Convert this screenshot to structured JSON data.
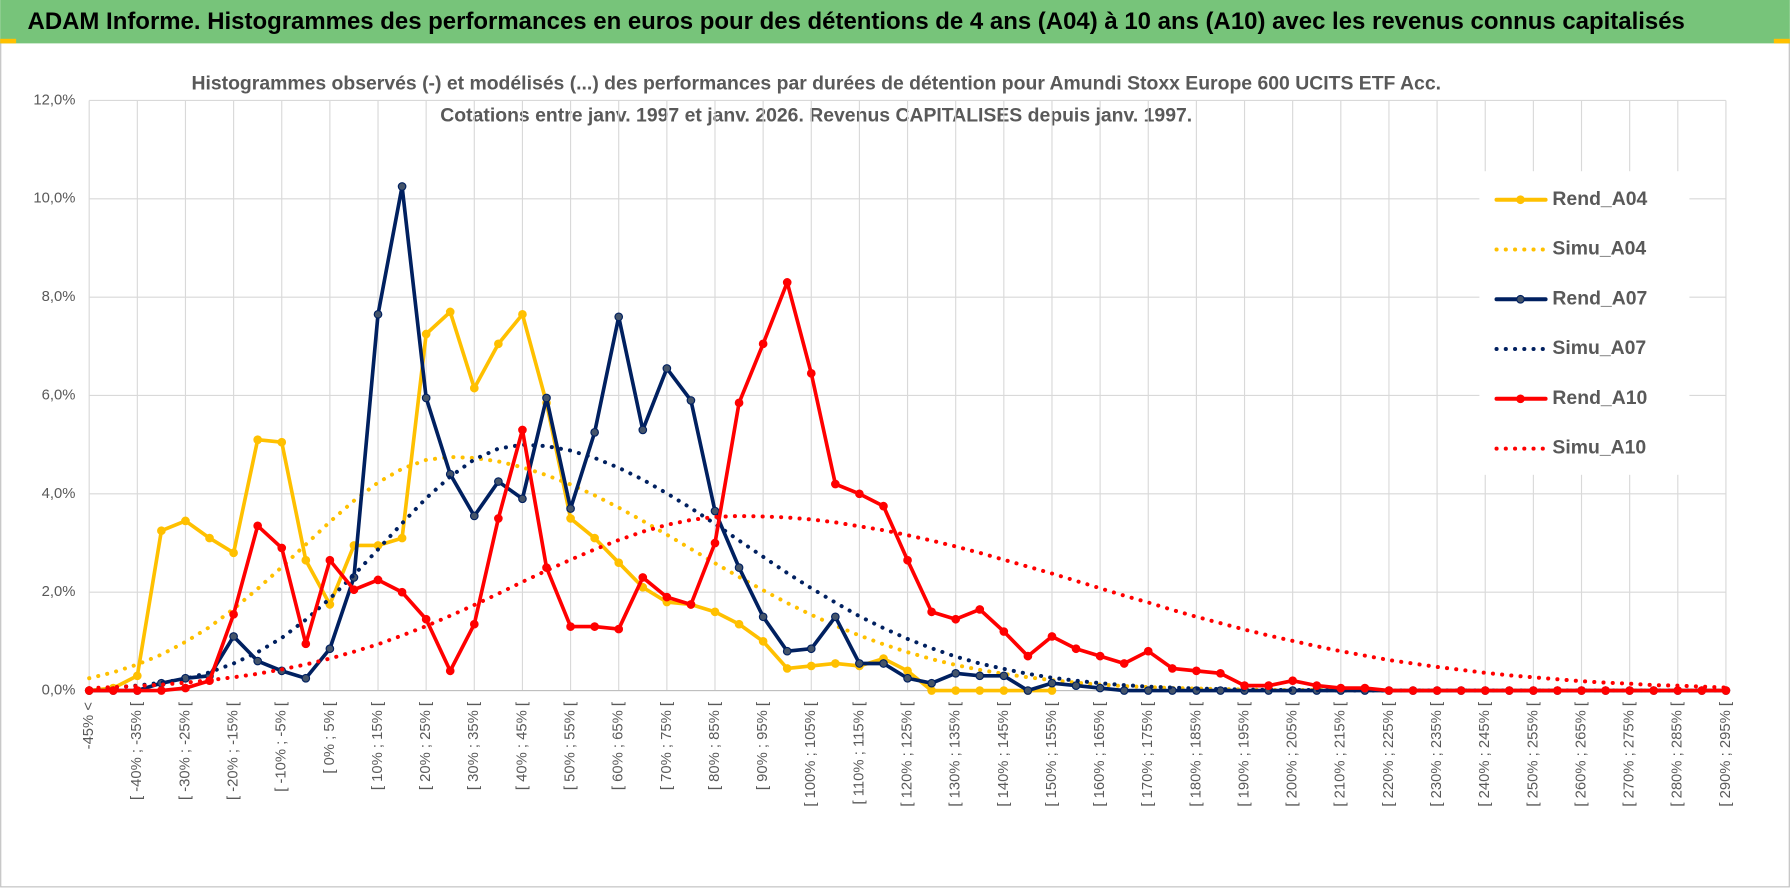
{
  "header": {
    "title": "ADAM Informe. Histogrammes des performances en euros pour des détentions de 4 ans (A04) à 10 ans (A10) avec les revenus connus capitalisés"
  },
  "chart_data": {
    "type": "line",
    "title": [
      "Histogrammes observés (-) et modélisés (...) des performances par durées de détention pour Amundi Stoxx Europe 600 UCITS ETF Acc.",
      "Cotations entre janv. 1997 et janv. 2026. Revenus CAPITALISES depuis janv. 1997."
    ],
    "categories": [
      "-45% <",
      null,
      "[ -40% ; -35% [",
      null,
      "[ -30% ; -25% [",
      null,
      "[ -20% ; -15% [",
      null,
      "[ -10% ; -5% [",
      null,
      "[ 0% ; 5% [",
      null,
      "[ 10% ; 15% [",
      null,
      "[ 20% ; 25% [",
      null,
      "[ 30% ; 35% [",
      null,
      "[ 40% ; 45% [",
      null,
      "[ 50% ; 55% [",
      null,
      "[ 60% ; 65% [",
      null,
      "[ 70% ; 75% [",
      null,
      "[ 80% ; 85% [",
      null,
      "[ 90% ; 95% [",
      null,
      "[ 100% ; 105% [",
      null,
      "[ 110% ; 115% [",
      null,
      "[ 120% ; 125% [",
      null,
      "[ 130% ; 135% [",
      null,
      "[ 140% ; 145% [",
      null,
      "[ 150% ; 155% [",
      null,
      "[ 160% ; 165% [",
      null,
      "[ 170% ; 175% [",
      null,
      "[ 180% ; 185% [",
      null,
      "[ 190% ; 195% [",
      null,
      "[ 200% ; 205% [",
      null,
      "[ 210% ; 215% [",
      null,
      "[ 220% ; 225% [",
      null,
      "[ 230% ; 235% [",
      null,
      "[ 240% ; 245% [",
      null,
      "[ 250% ; 255% [",
      null,
      "[ 260% ; 265% [",
      null,
      "[ 270% ; 275% [",
      null,
      "[ 280% ; 285% [",
      null,
      "[ 290% ; 295% ["
    ],
    "ylim": [
      0,
      12
    ],
    "yticks": [
      {
        "value": 0,
        "label": "0,0%"
      },
      {
        "value": 2,
        "label": "2,0%"
      },
      {
        "value": 4,
        "label": "4,0%"
      },
      {
        "value": 6,
        "label": "6,0%"
      },
      {
        "value": 8,
        "label": "8,0%"
      },
      {
        "value": 10,
        "label": "10,0%"
      },
      {
        "value": 12,
        "label": "12,0%"
      }
    ],
    "grid": true,
    "legend": "right",
    "series": [
      {
        "name": "Rend_A04",
        "color": "#ffc000",
        "line_style": "solid",
        "marker": true,
        "values": [
          0,
          0.05,
          0.3,
          3.25,
          3.45,
          3.1,
          2.8,
          5.1,
          5.05,
          2.65,
          1.75,
          2.95,
          2.95,
          3.1,
          7.25,
          7.7,
          6.15,
          7.05,
          7.65,
          5.85,
          3.5,
          3.1,
          2.6,
          2.1,
          1.8,
          1.75,
          1.6,
          1.35,
          1.0,
          0.45,
          0.5,
          0.55,
          0.5,
          0.65,
          0.4,
          0,
          0,
          0,
          0,
          0,
          0,
          null,
          null,
          null,
          null,
          null,
          null,
          null,
          null,
          null,
          null,
          null,
          null,
          null,
          null,
          null,
          null,
          null,
          null,
          null,
          null,
          null,
          null,
          null,
          null,
          null,
          null,
          null,
          null
        ]
      },
      {
        "name": "Simu_A04",
        "color": "#ffc000",
        "line_style": "dotted",
        "marker": false,
        "values": [
          0.25,
          0.37,
          0.53,
          0.73,
          0.99,
          1.29,
          1.66,
          2.07,
          2.51,
          2.97,
          3.43,
          3.86,
          4.23,
          4.51,
          4.69,
          4.75,
          4.73,
          4.66,
          4.54,
          4.38,
          4.19,
          3.97,
          3.72,
          3.45,
          3.17,
          2.88,
          2.59,
          2.31,
          2.04,
          1.78,
          1.54,
          1.32,
          1.12,
          0.94,
          0.78,
          0.64,
          0.52,
          0.42,
          0.34,
          0.27,
          0.21,
          0.16,
          0.12,
          0.09,
          0.07,
          0.05,
          0.04,
          0.03,
          0.02,
          0.01,
          0.01,
          0.01,
          0.01,
          0.01,
          0,
          0,
          0,
          0,
          0,
          0,
          0,
          0,
          0,
          0,
          0,
          0,
          0,
          0,
          0
        ]
      },
      {
        "name": "Rend_A07",
        "color": "#002060",
        "line_style": "solid",
        "marker": true,
        "values": [
          0,
          0,
          0,
          0.15,
          0.25,
          0.3,
          1.1,
          0.6,
          0.4,
          0.25,
          0.85,
          2.3,
          7.65,
          10.25,
          5.95,
          4.4,
          3.55,
          4.25,
          3.9,
          5.95,
          3.7,
          5.25,
          7.6,
          5.3,
          6.55,
          5.9,
          3.65,
          2.5,
          1.5,
          0.8,
          0.85,
          1.5,
          0.55,
          0.55,
          0.25,
          0.15,
          0.35,
          0.3,
          0.3,
          0,
          0.15,
          0.1,
          0.05,
          0,
          0,
          0,
          0,
          0,
          0,
          0,
          0,
          0,
          0,
          0,
          0,
          0,
          0,
          0,
          0,
          0,
          0,
          0,
          0,
          0,
          0,
          0,
          0,
          0,
          0
        ]
      },
      {
        "name": "Simu_A07",
        "color": "#002060",
        "line_style": "dotted",
        "marker": false,
        "values": [
          0.03,
          0.06,
          0.1,
          0.16,
          0.24,
          0.37,
          0.55,
          0.78,
          1.07,
          1.44,
          1.87,
          2.35,
          2.87,
          3.4,
          3.91,
          4.35,
          4.7,
          4.92,
          5.0,
          4.97,
          4.88,
          4.73,
          4.53,
          4.29,
          4.01,
          3.71,
          3.39,
          3.05,
          2.72,
          2.39,
          2.08,
          1.79,
          1.51,
          1.27,
          1.05,
          0.86,
          0.69,
          0.55,
          0.44,
          0.34,
          0.26,
          0.2,
          0.15,
          0.11,
          0.08,
          0.06,
          0.04,
          0.03,
          0.02,
          0.01,
          0.01,
          0.01,
          0,
          0,
          0,
          0,
          0,
          0,
          0,
          0,
          0,
          0,
          0,
          0,
          0,
          0,
          0,
          0,
          0
        ]
      },
      {
        "name": "Rend_A10",
        "color": "#ff0000",
        "line_style": "solid",
        "marker": true,
        "values": [
          0,
          0,
          0,
          0,
          0.05,
          0.2,
          1.55,
          3.35,
          2.9,
          0.95,
          2.65,
          2.05,
          2.25,
          2.0,
          1.45,
          0.4,
          1.35,
          3.5,
          5.3,
          2.5,
          1.3,
          1.3,
          1.25,
          2.3,
          1.9,
          1.75,
          3.0,
          5.85,
          7.05,
          8.3,
          6.45,
          4.2,
          4.0,
          3.75,
          2.65,
          1.6,
          1.45,
          1.65,
          1.2,
          0.7,
          1.1,
          0.85,
          0.7,
          0.55,
          0.8,
          0.45,
          0.4,
          0.35,
          0.1,
          0.1,
          0.2,
          0.1,
          0.05,
          0.05,
          0,
          0,
          0,
          0,
          0,
          0,
          0,
          0,
          0,
          0,
          0,
          0,
          0,
          0,
          0
        ]
      },
      {
        "name": "Simu_A10",
        "color": "#ff0000",
        "line_style": "dotted",
        "marker": false,
        "values": [
          0.05,
          0.07,
          0.09,
          0.12,
          0.16,
          0.21,
          0.27,
          0.34,
          0.43,
          0.53,
          0.65,
          0.79,
          0.94,
          1.12,
          1.31,
          1.52,
          1.74,
          1.97,
          2.21,
          2.44,
          2.66,
          2.87,
          3.06,
          3.23,
          3.37,
          3.47,
          3.53,
          3.55,
          3.54,
          3.52,
          3.48,
          3.42,
          3.34,
          3.26,
          3.16,
          3.05,
          2.93,
          2.8,
          2.66,
          2.52,
          2.38,
          2.23,
          2.08,
          1.93,
          1.79,
          1.64,
          1.5,
          1.37,
          1.24,
          1.12,
          1.01,
          0.9,
          0.8,
          0.71,
          0.62,
          0.55,
          0.48,
          0.42,
          0.36,
          0.31,
          0.27,
          0.23,
          0.19,
          0.16,
          0.14,
          0.11,
          0.1,
          0.08,
          0.06
        ]
      }
    ]
  }
}
